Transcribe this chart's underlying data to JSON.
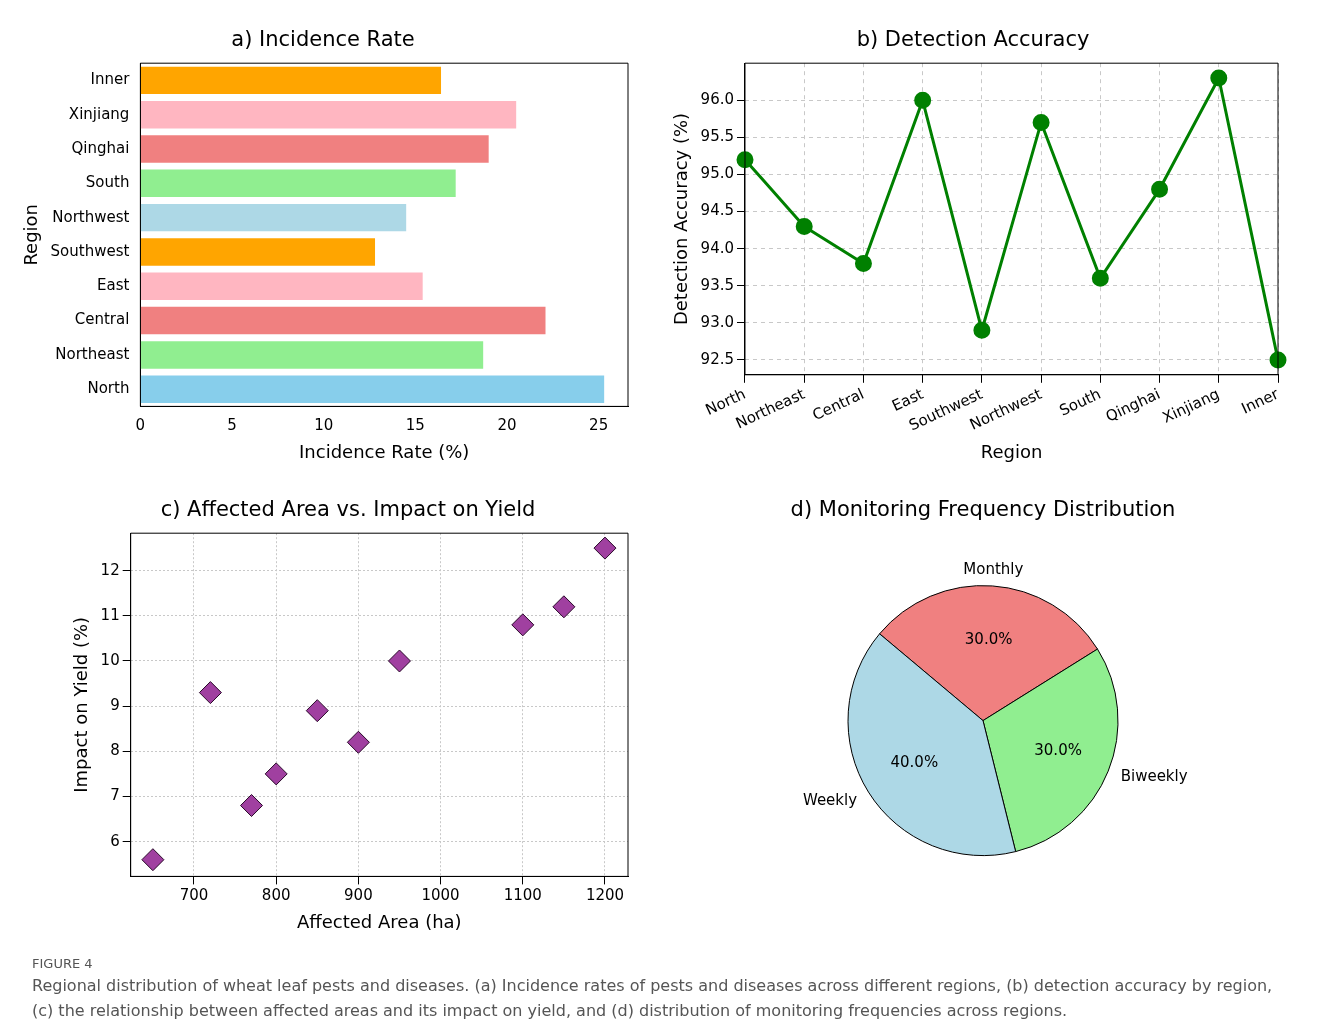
{
  "chart_data": [
    {
      "type": "bar",
      "orientation": "horizontal",
      "title": "a) Incidence Rate",
      "xlabel": "Incidence Rate (%)",
      "ylabel": "Region",
      "categories": [
        "Inner",
        "Xinjiang",
        "Qinghai",
        "South",
        "Northwest",
        "Southwest",
        "East",
        "Central",
        "Northeast",
        "North"
      ],
      "values": [
        16.4,
        20.5,
        19.0,
        17.2,
        14.5,
        12.8,
        15.4,
        22.1,
        18.7,
        25.3
      ],
      "colors": [
        "#ffa500",
        "#ffb6c1",
        "#f08080",
        "#90ee90",
        "#add8e6",
        "#ffa500",
        "#ffb6c1",
        "#f08080",
        "#90ee90",
        "#87ceeb"
      ],
      "xlim": [
        0,
        26.6
      ],
      "xticks": [
        0,
        5,
        10,
        15,
        20,
        25
      ],
      "grid": false,
      "legend": false
    },
    {
      "type": "line",
      "title": "b) Detection Accuracy",
      "xlabel": "Region",
      "ylabel": "Detection Accuracy (%)",
      "categories": [
        "North",
        "Northeast",
        "Central",
        "East",
        "Southwest",
        "Northwest",
        "South",
        "Qinghai",
        "Xinjiang",
        "Inner"
      ],
      "values": [
        95.2,
        94.3,
        93.8,
        96.0,
        92.9,
        95.7,
        93.6,
        94.8,
        96.3,
        92.5
      ],
      "color": "#008000",
      "marker": "circle",
      "line_style": "solid",
      "ylim": [
        92.3,
        96.5
      ],
      "yticks": [
        {
          "value": 92.5,
          "label": "92.5"
        },
        {
          "value": 93,
          "label": "93.0"
        },
        {
          "value": 93.5,
          "label": "93.5"
        },
        {
          "value": 94,
          "label": "94.0"
        },
        {
          "value": 94.5,
          "label": "94.5"
        },
        {
          "value": 95,
          "label": "95.0"
        },
        {
          "value": 95.5,
          "label": "95.5"
        },
        {
          "value": 96,
          "label": "96.0"
        }
      ],
      "grid": true,
      "legend": false
    },
    {
      "type": "scatter",
      "title": "c) Affected Area vs. Impact on Yield",
      "xlabel": "Affected Area (ha)",
      "ylabel": "Impact on Yield (%)",
      "x": [
        650,
        720,
        770,
        800,
        850,
        900,
        950,
        1100,
        1150,
        1200
      ],
      "values": [
        5.6,
        9.3,
        6.8,
        7.5,
        8.9,
        8.2,
        10.0,
        10.8,
        11.2,
        12.5
      ],
      "color": "#a040a0",
      "marker": "diamond",
      "xlim": [
        623,
        1228
      ],
      "xticks": [
        700,
        800,
        900,
        1000,
        1100,
        1200
      ],
      "ylim": [
        5.23,
        12.83
      ],
      "yticks": [
        6,
        7,
        8,
        9,
        10,
        11,
        12
      ],
      "grid": true,
      "legend": false
    },
    {
      "type": "pie",
      "title": "d) Monitoring Frequency Distribution",
      "categories": [
        "Monthly",
        "Biweekly",
        "Weekly"
      ],
      "values": [
        30,
        30,
        40
      ],
      "colors": [
        "#f08080",
        "#90ee90",
        "#add8e6"
      ],
      "value_labels": [
        "30.0%",
        "30.0%",
        "40.0%"
      ],
      "legend": false,
      "annotations": [
        "FIGURE 4",
        "Regional distribution of wheat leaf pests and diseases. (a) Incidence rates of pests and diseases across different regions, (b) detection accuracy by region, (c) the relationship between affected areas and its impact on yield, and (d) distribution of monitoring frequencies across regions."
      ]
    }
  ]
}
